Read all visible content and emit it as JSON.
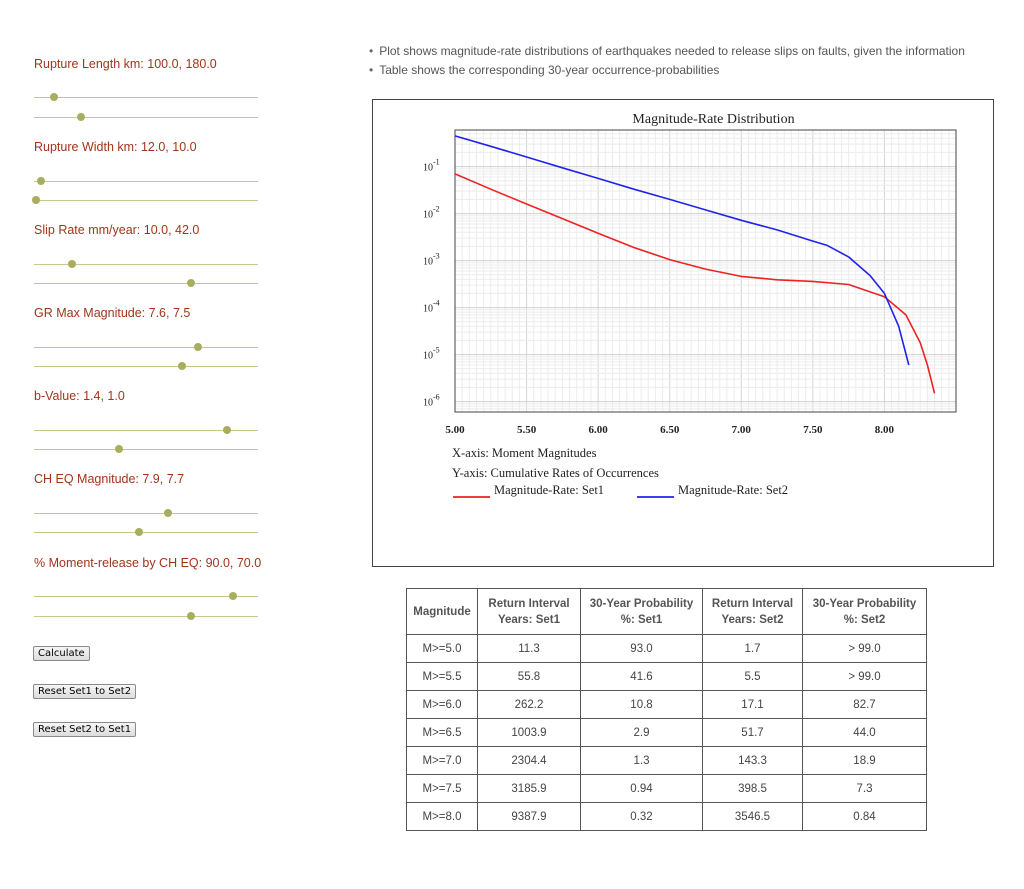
{
  "controls": [
    {
      "label": "Rupture Length km: 100.0, 180.0",
      "set1_fraction": 0.09,
      "set2_fraction": 0.21
    },
    {
      "label": "Rupture Width km: 12.0, 10.0",
      "set1_fraction": 0.03,
      "set2_fraction": 0.01
    },
    {
      "label": "Slip Rate mm/year: 10.0, 42.0",
      "set1_fraction": 0.17,
      "set2_fraction": 0.7
    },
    {
      "label": "GR Max Magnitude: 7.6, 7.5",
      "set1_fraction": 0.73,
      "set2_fraction": 0.66
    },
    {
      "label": "b-Value: 1.4, 1.0",
      "set1_fraction": 0.86,
      "set2_fraction": 0.38
    },
    {
      "label": "CH EQ Magnitude: 7.9, 7.7",
      "set1_fraction": 0.6,
      "set2_fraction": 0.47
    },
    {
      "label": "% Moment-release by CH EQ: 90.0, 70.0",
      "set1_fraction": 0.89,
      "set2_fraction": 0.7
    }
  ],
  "buttons": {
    "calculate": "Calculate",
    "reset_set1": "Reset Set1 to Set2",
    "reset_set2": "Reset Set2 to Set1"
  },
  "notes": [
    "Plot shows magnitude-rate distributions of earthquakes needed to release slips on faults, given the information",
    "Table shows the corresponding 30-year occurrence-probabilities"
  ],
  "chart_data": {
    "type": "line",
    "title": "Magnitude-Rate Distribution",
    "xlabel_text": "X-axis: Moment Magnitudes",
    "ylabel_text": "Y-axis: Cumulative Rates of Occurrences",
    "xlim": [
      5.0,
      8.5
    ],
    "ylim": [
      6e-07,
      0.6
    ],
    "y_scale": "log",
    "grid": true,
    "legend": "bottom-left",
    "x_ticks": [
      "5.00",
      "5.50",
      "6.00",
      "6.50",
      "7.00",
      "7.50",
      "8.00"
    ],
    "y_ticks": [
      {
        "base": "10",
        "exp": "-1",
        "value": 0.1
      },
      {
        "base": "10",
        "exp": "-2",
        "value": 0.01
      },
      {
        "base": "10",
        "exp": "-3",
        "value": 0.001
      },
      {
        "base": "10",
        "exp": "-4",
        "value": 0.0001
      },
      {
        "base": "10",
        "exp": "-5",
        "value": 1e-05
      },
      {
        "base": "10",
        "exp": "-6",
        "value": 1e-06
      }
    ],
    "series": [
      {
        "name": "Magnitude-Rate: Set1",
        "color": "#ee2222",
        "x": [
          5.0,
          5.25,
          5.5,
          5.75,
          6.0,
          6.25,
          6.5,
          6.75,
          7.0,
          7.25,
          7.5,
          7.75,
          8.0,
          8.15,
          8.25,
          8.3,
          8.35
        ],
        "y": [
          0.07,
          0.033,
          0.016,
          0.0078,
          0.0038,
          0.0019,
          0.00105,
          0.00066,
          0.00046,
          0.00039,
          0.00036,
          0.00031,
          0.00017,
          7e-05,
          1.8e-05,
          6e-06,
          1.5e-06
        ]
      },
      {
        "name": "Magnitude-Rate: Set2",
        "color": "#2222ee",
        "x": [
          5.0,
          5.25,
          5.5,
          5.75,
          6.0,
          6.25,
          6.5,
          6.75,
          7.0,
          7.25,
          7.5,
          7.6,
          7.75,
          7.9,
          8.0,
          8.1,
          8.17
        ],
        "y": [
          0.45,
          0.27,
          0.16,
          0.094,
          0.056,
          0.033,
          0.02,
          0.012,
          0.0072,
          0.0045,
          0.0026,
          0.0021,
          0.0012,
          0.00048,
          0.0002,
          4e-05,
          6e-06
        ]
      }
    ]
  },
  "table": {
    "headers": [
      {
        "line1": "Magnitude",
        "line2": ""
      },
      {
        "line1": "Return Interval",
        "line2": "Years: Set1"
      },
      {
        "line1": "30-Year Probability",
        "line2": "%: Set1"
      },
      {
        "line1": "Return Interval",
        "line2": "Years: Set2"
      },
      {
        "line1": "30-Year Probability",
        "line2": "%: Set2"
      }
    ],
    "rows": [
      [
        "M>=5.0",
        "11.3",
        "93.0",
        "1.7",
        "> 99.0"
      ],
      [
        "M>=5.5",
        "55.8",
        "41.6",
        "5.5",
        "> 99.0"
      ],
      [
        "M>=6.0",
        "262.2",
        "10.8",
        "17.1",
        "82.7"
      ],
      [
        "M>=6.5",
        "1003.9",
        "2.9",
        "51.7",
        "44.0"
      ],
      [
        "M>=7.0",
        "2304.4",
        "1.3",
        "143.3",
        "18.9"
      ],
      [
        "M>=7.5",
        "3185.9",
        "0.94",
        "398.5",
        "7.3"
      ],
      [
        "M>=8.0",
        "9387.9",
        "0.32",
        "3546.5",
        "0.84"
      ]
    ]
  },
  "colors": {
    "label_accent": "#a0351a",
    "slider_thumb": "#a9ad5e",
    "slider_track": "#c5c98e"
  }
}
